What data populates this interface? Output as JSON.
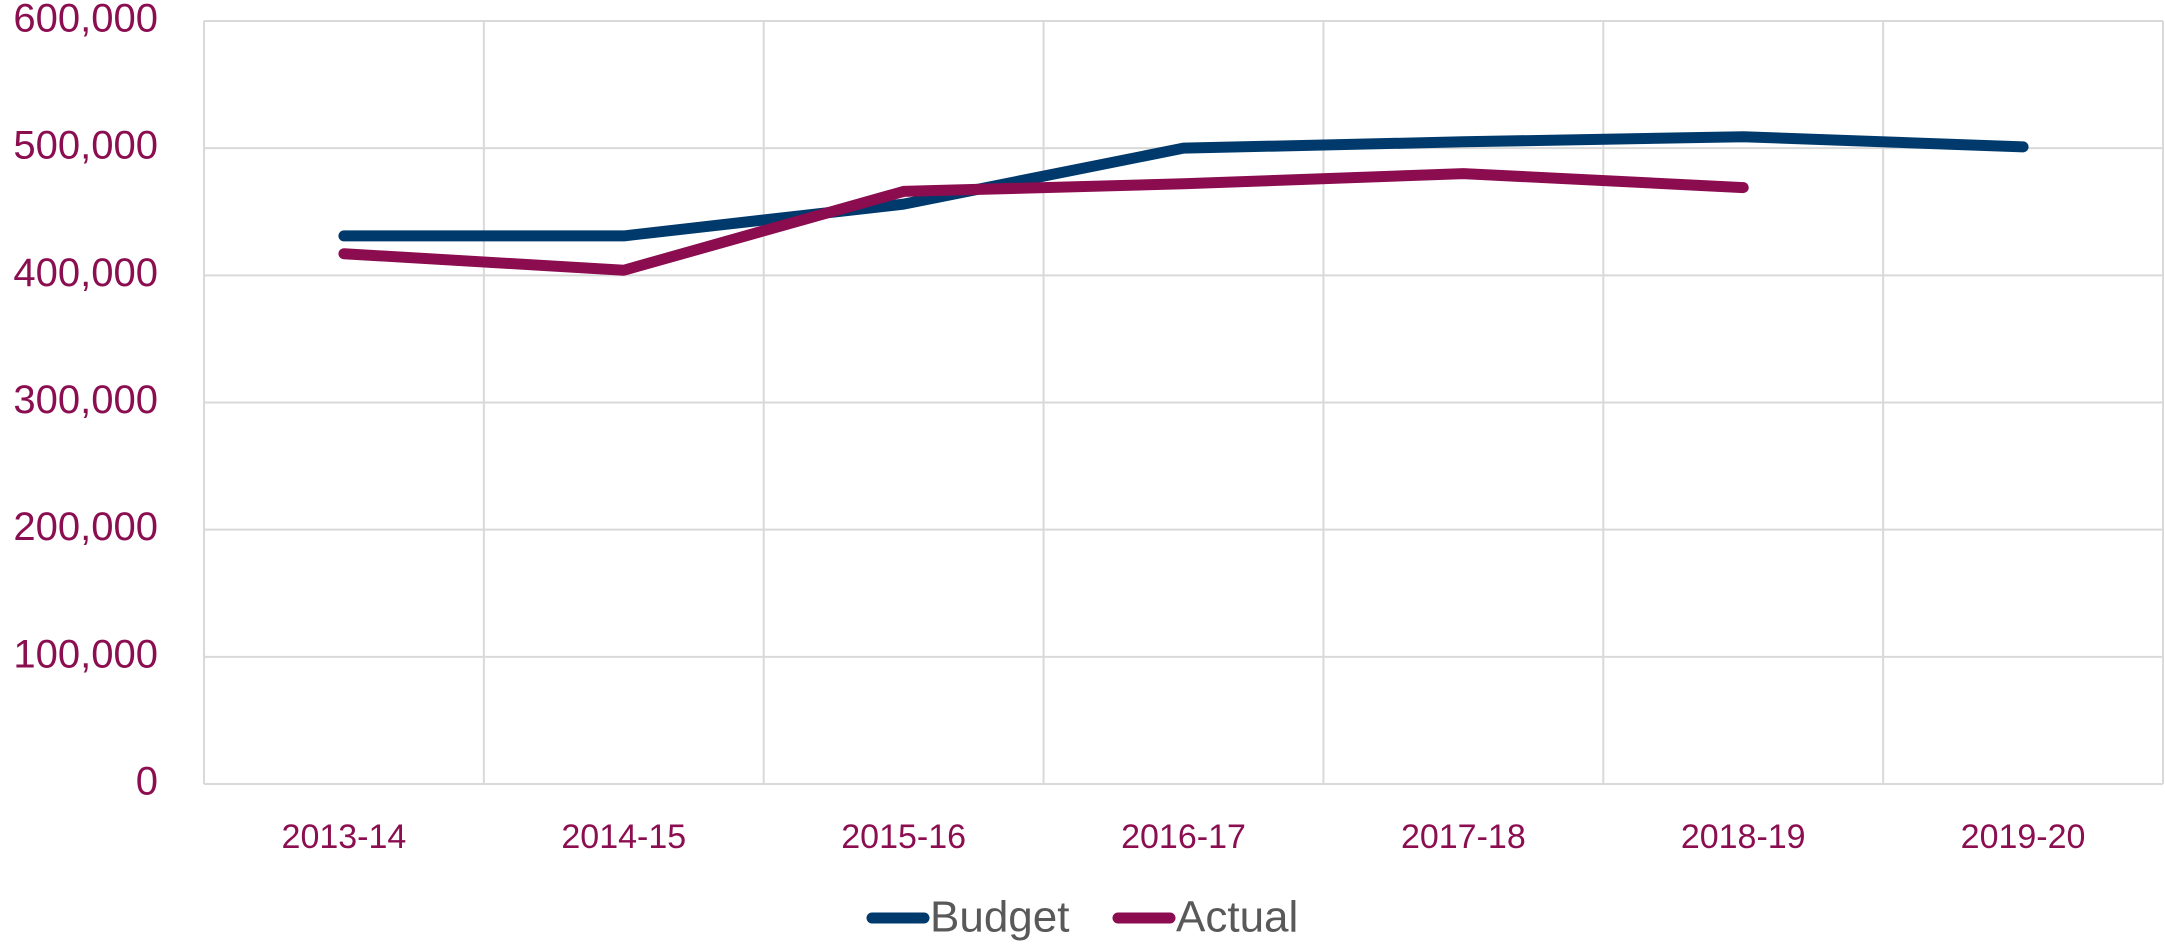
{
  "chart_data": {
    "type": "line",
    "categories": [
      "2013-14",
      "2014-15",
      "2015-16",
      "2016-17",
      "2017-18",
      "2018-19",
      "2019-20"
    ],
    "series": [
      {
        "name": "Budget",
        "color": "#003a6c",
        "values": [
          431000,
          431000,
          456000,
          500000,
          505000,
          509000,
          501000
        ]
      },
      {
        "name": "Actual",
        "color": "#8b0c4f",
        "values": [
          417000,
          404000,
          466000,
          472000,
          480000,
          469000,
          null
        ]
      }
    ],
    "ylim": [
      0,
      600000
    ],
    "yticks": [
      0,
      {
        "value": 100000,
        "label": "100,000"
      },
      {
        "value": 200000,
        "label": "200,000"
      },
      {
        "value": 300000,
        "label": "300,000"
      },
      {
        "value": 400000,
        "label": "400,000"
      },
      {
        "value": 500000,
        "label": "500,000"
      },
      {
        "value": 600000,
        "label": "600,000"
      }
    ],
    "grid": true,
    "legend": "bottom"
  }
}
